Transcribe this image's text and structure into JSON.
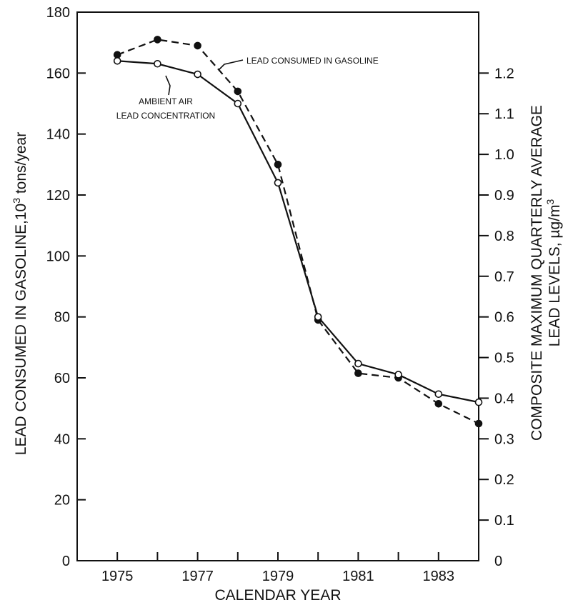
{
  "chart_data": {
    "type": "line",
    "xlabel": "CALENDAR YEAR",
    "ylabel_left": "LEAD CONSUMED IN GASOLINE,10",
    "ylabel_left_sup": "3",
    "ylabel_left_unit": " tons/year",
    "ylabel_right_line1": "COMPOSITE MAXIMUM QUARTERLY AVERAGE",
    "ylabel_right_line2": "LEAD LEVELS, µg/m",
    "ylabel_right_sup": "3",
    "xlim": [
      1974,
      1984
    ],
    "ylim_left": [
      0,
      180
    ],
    "ylim_right": [
      0,
      1.35
    ],
    "x_ticks": [
      1975,
      1977,
      1979,
      1981,
      1983
    ],
    "y_ticks_left": [
      0,
      20,
      40,
      60,
      80,
      100,
      120,
      140,
      160,
      180
    ],
    "y_ticks_right": [
      0,
      0.1,
      0.2,
      0.3,
      0.4,
      0.5,
      0.6,
      0.7,
      0.8,
      0.9,
      1.0,
      1.1,
      1.2
    ],
    "y_tick_labels_right": [
      "0",
      "0.1",
      "0.2",
      "0.3",
      "0.4",
      "0.5",
      "0.6",
      "0.7",
      "0.8",
      "0.9",
      "1.0",
      "1.1",
      "1.2"
    ],
    "series": [
      {
        "name": "LEAD CONSUMED IN GASOLINE",
        "axis": "left",
        "style": "dashed",
        "marker": "filled",
        "x": [
          1975,
          1976,
          1977,
          1978,
          1979,
          1980,
          1981,
          1982,
          1983,
          1984
        ],
        "y": [
          166,
          171,
          169,
          154,
          130,
          79,
          61.5,
          60,
          51.5,
          45
        ]
      },
      {
        "name_line1": "AMBIENT AIR",
        "name_line2": "LEAD CONCENTRATION",
        "axis": "right",
        "style": "solid",
        "marker": "open",
        "x": [
          1975,
          1976,
          1977,
          1978,
          1979,
          1980,
          1981,
          1982,
          1983,
          1984
        ],
        "y": [
          1.23,
          1.223,
          1.197,
          1.125,
          0.93,
          0.6,
          0.485,
          0.458,
          0.41,
          0.39
        ]
      }
    ]
  }
}
